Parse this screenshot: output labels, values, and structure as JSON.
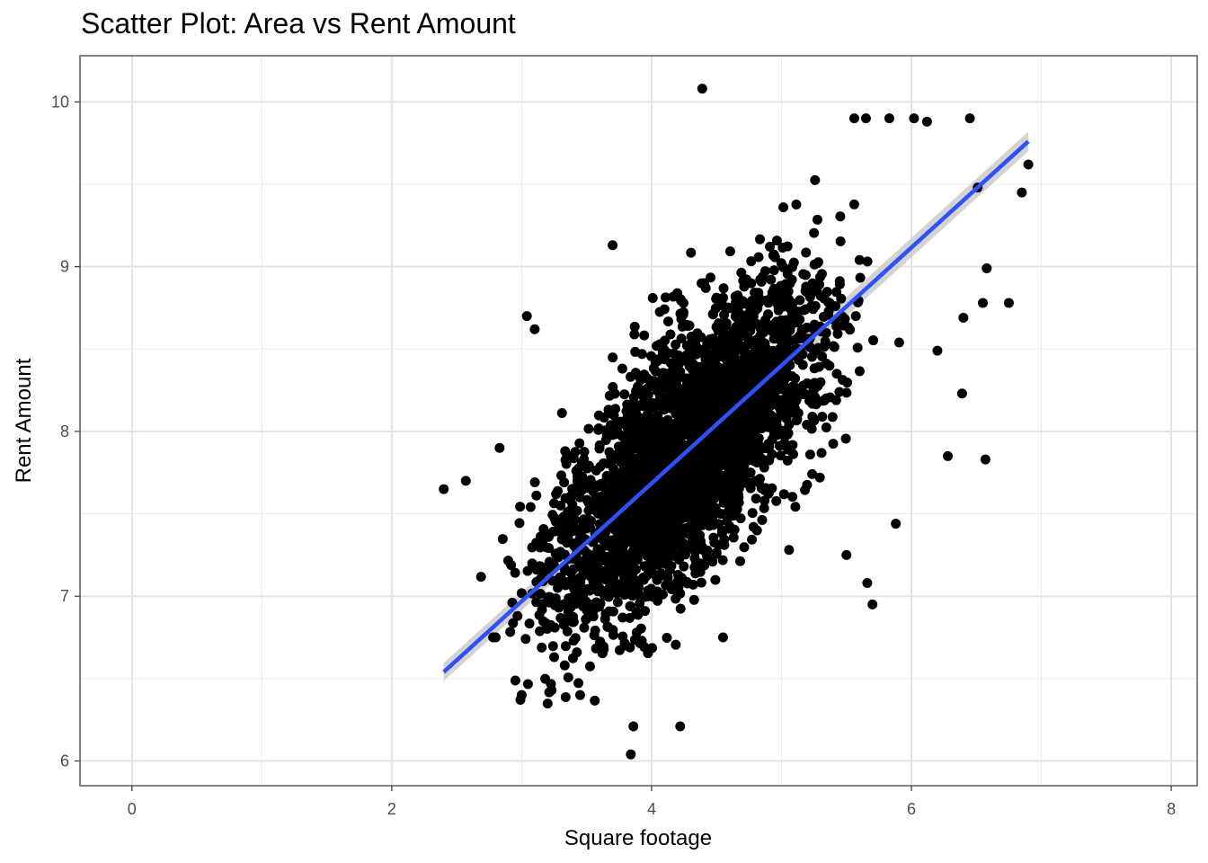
{
  "chart_data": {
    "type": "scatter",
    "title": "Scatter Plot: Area vs Rent Amount",
    "xlabel": "Square footage",
    "ylabel": "Rent Amount",
    "xlim": [
      -0.4,
      8.2
    ],
    "ylim": [
      5.85,
      10.28
    ],
    "x_ticks": [
      0,
      2,
      4,
      6,
      8
    ],
    "y_ticks": [
      6,
      7,
      8,
      9,
      10
    ],
    "grid": true,
    "point_color": "#000000",
    "trend_color": "#3050f8",
    "ribbon_color": "#c8c8c8",
    "trend_line": {
      "x": [
        2.4,
        6.9
      ],
      "y": [
        6.54,
        9.76
      ]
    },
    "cluster_center": [
      4.3,
      7.9
    ],
    "points_x": [
      2.4,
      2.57,
      2.83,
      3.84,
      4.39,
      5.56,
      5.65,
      5.83,
      6.02,
      6.12,
      6.45,
      6.51,
      6.85,
      6.9,
      6.75,
      6.57,
      6.28,
      6.39,
      5.88,
      5.66,
      4.55,
      3.86,
      4.22,
      3.7,
      3.04,
      3.1,
      2.8,
      2.78,
      3.23,
      3.25,
      3.45,
      3.0,
      5.7,
      5.5,
      6.2,
      6.58,
      6.55,
      6.4
    ],
    "points_y": [
      7.65,
      7.7,
      7.9,
      6.04,
      10.08,
      9.9,
      9.9,
      9.9,
      9.9,
      9.88,
      9.9,
      9.48,
      9.45,
      9.62,
      8.78,
      7.83,
      7.85,
      8.23,
      7.44,
      7.08,
      6.75,
      6.21,
      6.21,
      9.13,
      8.7,
      8.62,
      6.75,
      6.75,
      6.43,
      6.63,
      6.4,
      6.4,
      6.95,
      7.25,
      8.49,
      8.99,
      8.78,
      8.69
    ]
  }
}
